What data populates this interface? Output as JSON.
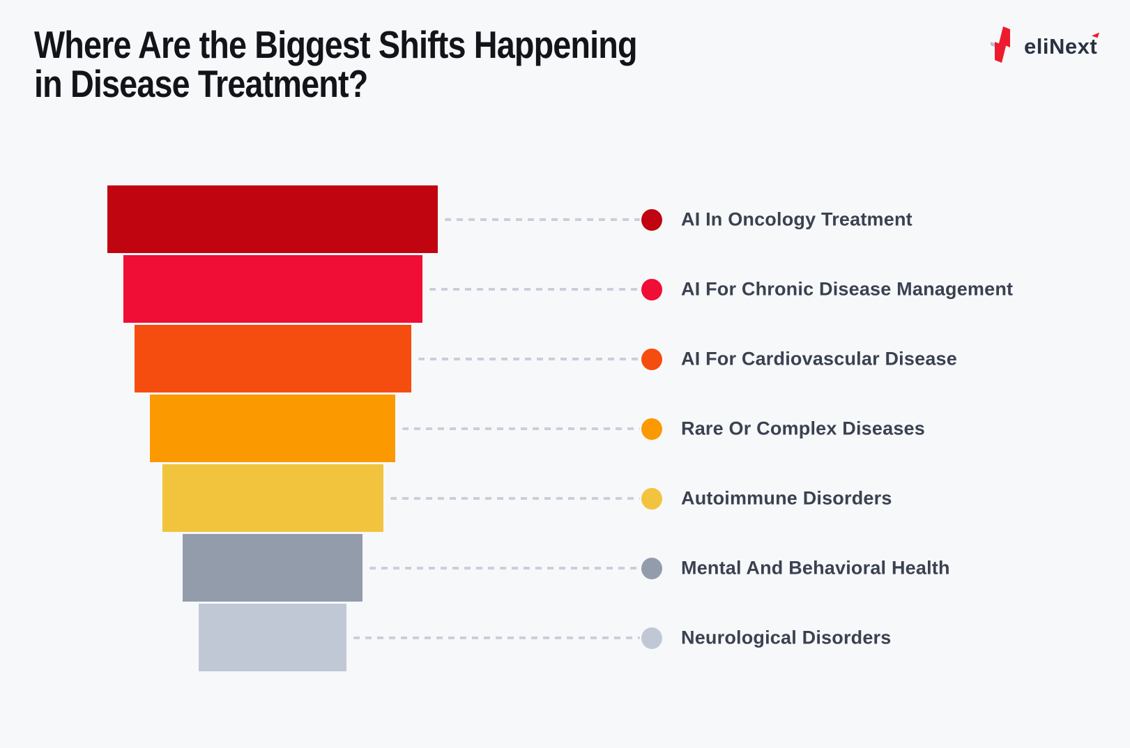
{
  "page": {
    "background_color": "#F7F8FA"
  },
  "header": {
    "title_line1": "Where Are the Biggest Shifts Happening",
    "title_line2": "in Disease Treatment?",
    "title_color": "#131419"
  },
  "logo": {
    "brand_text": "eliNext",
    "text_color": "#2A3142",
    "icon_red": "#EC1C2E",
    "icon_gray_tick": "#B9C0CC"
  },
  "chart_data": {
    "type": "funnel",
    "title": "Where Are the Biggest Shifts Happening in Disease Treatment?",
    "legend_position": "right",
    "values_labeled_on_chart": false,
    "orientation": "top-widest",
    "categories": [
      "AI In Oncology Treatment",
      "AI For Chronic Disease Management",
      "AI For Cardiovascular Disease",
      "Rare Or Complex Diseases",
      "Autoimmune Disorders",
      "Mental And Behavioral Health",
      "Neurological Disorders"
    ],
    "items": [
      {
        "label": "AI In Oncology Treatment",
        "relative_width_pct": 100.0,
        "color": "#C00410"
      },
      {
        "label": "AI For Chronic Disease Management",
        "relative_width_pct": 90.5,
        "color": "#F00D36"
      },
      {
        "label": "AI For Cardiovascular Disease",
        "relative_width_pct": 83.8,
        "color": "#F54D10"
      },
      {
        "label": "Rare Or Complex Diseases",
        "relative_width_pct": 74.3,
        "color": "#FB9901"
      },
      {
        "label": "Autoimmune Disorders",
        "relative_width_pct": 66.9,
        "color": "#F2C43D"
      },
      {
        "label": "Mental And Behavioral Health",
        "relative_width_pct": 54.4,
        "color": "#939CAB"
      },
      {
        "label": "Neurological Disorders",
        "relative_width_pct": 44.7,
        "color": "#C1C8D5"
      }
    ],
    "connector_line_color": "#C9CFDA",
    "label_text_color": "#3A4150"
  }
}
